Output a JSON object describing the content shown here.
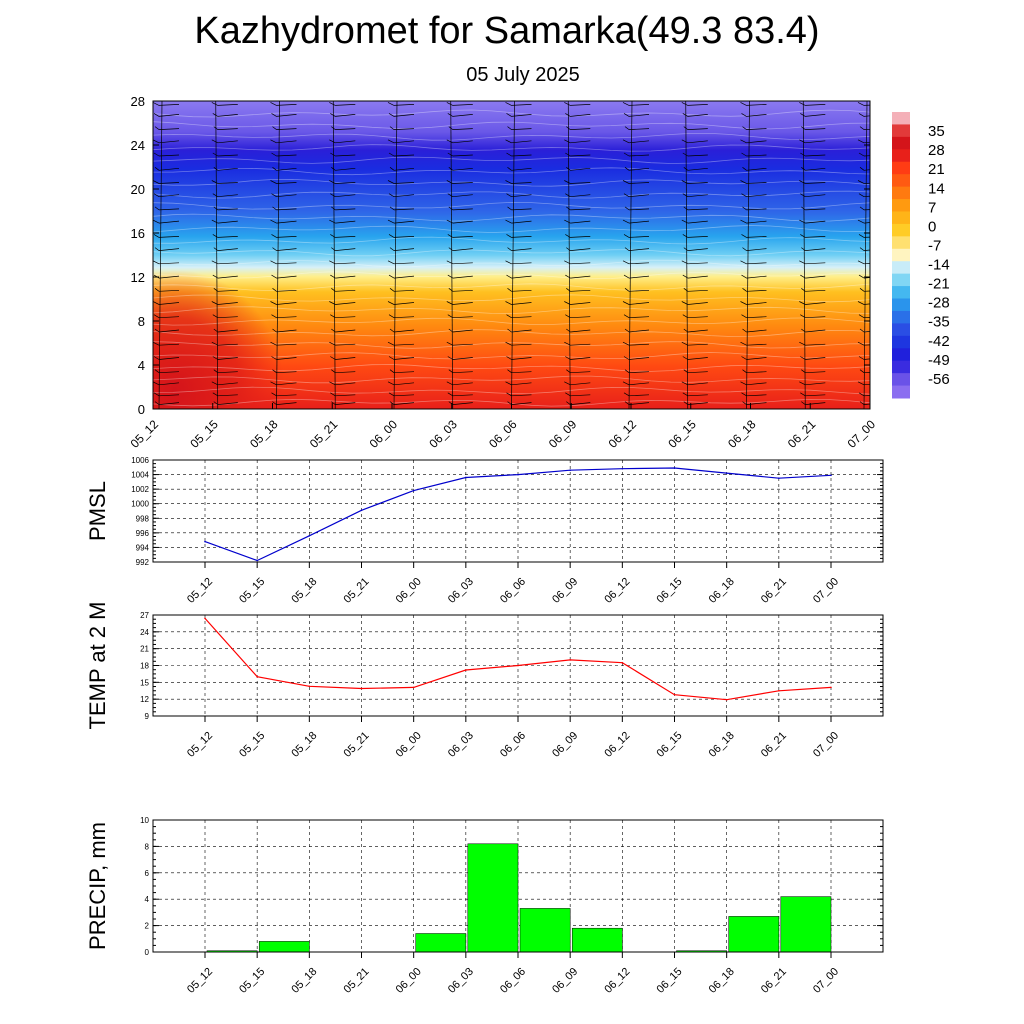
{
  "title": "Kazhydromet for Samarka(49.3 83.4)",
  "subtitle": "05 July 2025",
  "chart_data": [
    {
      "type": "heatmap",
      "description_variable": "temperature cross-section with wind barbs",
      "y_ticks": [
        0,
        4,
        8,
        12,
        16,
        20,
        24,
        28
      ],
      "ylim": [
        0,
        28
      ],
      "x_tick_labels": [
        "05_12",
        "05_15",
        "05_18",
        "05_21",
        "06_00",
        "06_03",
        "06_06",
        "06_09",
        "06_12",
        "06_15",
        "06_18",
        "06_21",
        "07_00"
      ],
      "colorbar_labels": [
        "35",
        "28",
        "21",
        "14",
        "7",
        "0",
        "-7",
        "-14",
        "-21",
        "-28",
        "-35",
        "-42",
        "-49",
        "-56"
      ],
      "colorbar_range": [
        -63,
        42
      ],
      "freezing_level": 12.3
    },
    {
      "type": "line",
      "ylabel": "PMSL",
      "ylim": [
        992,
        1006
      ],
      "y_ticks": [
        992,
        994,
        996,
        998,
        1000,
        1002,
        1004,
        1006
      ],
      "categories": [
        "05_12",
        "05_15",
        "05_18",
        "05_21",
        "06_00",
        "06_03",
        "06_06",
        "06_09",
        "06_12",
        "06_15",
        "06_18",
        "06_21",
        "07_00"
      ],
      "values": [
        994.8,
        992.2,
        995.6,
        999.1,
        1001.8,
        1003.6,
        1004.0,
        1004.6,
        1004.8,
        1004.9,
        1004.2,
        1003.5,
        1003.9
      ],
      "color": "#0000cc"
    },
    {
      "type": "line",
      "ylabel": "TEMP at 2 M",
      "ylim": [
        9,
        27
      ],
      "y_ticks": [
        9,
        12,
        15,
        18,
        21,
        24,
        27
      ],
      "categories": [
        "05_12",
        "05_15",
        "05_18",
        "05_21",
        "06_00",
        "06_03",
        "06_06",
        "06_09",
        "06_12",
        "06_15",
        "06_18",
        "06_21",
        "07_00"
      ],
      "values": [
        26.4,
        16.0,
        14.3,
        13.9,
        14.1,
        17.2,
        18.0,
        19.0,
        18.5,
        12.8,
        11.9,
        13.5,
        14.1
      ],
      "color": "#ff0000"
    },
    {
      "type": "bar",
      "ylabel": "PRECIP, mm",
      "ylim": [
        0,
        10
      ],
      "y_ticks": [
        0,
        2,
        4,
        6,
        8,
        10
      ],
      "categories": [
        "05_12",
        "05_15",
        "05_18",
        "05_21",
        "06_00",
        "06_03",
        "06_06",
        "06_09",
        "06_12",
        "06_15",
        "06_18",
        "06_21",
        "07_00"
      ],
      "values": [
        0,
        0.1,
        0.8,
        0,
        0,
        1.4,
        8.2,
        3.3,
        1.8,
        0,
        0.1,
        2.7,
        4.2
      ],
      "color": "#00ff00"
    }
  ]
}
